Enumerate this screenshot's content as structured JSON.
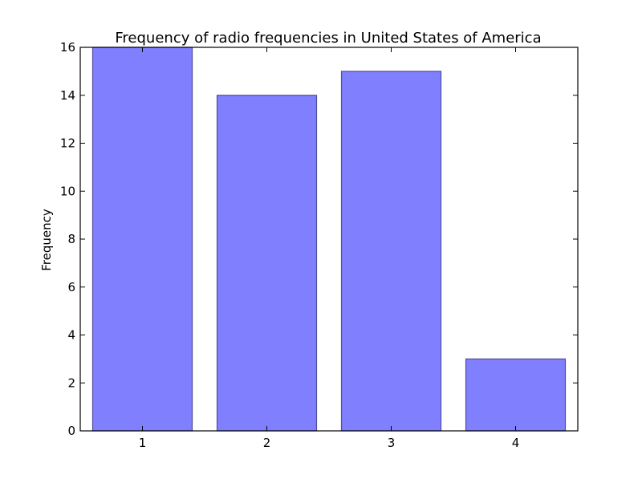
{
  "chart_data": {
    "type": "bar",
    "title": "Frequency of radio frequencies in United States of America",
    "xlabel": "",
    "ylabel": "Frequency",
    "categories": [
      "1",
      "2",
      "3",
      "4"
    ],
    "values": [
      16,
      14,
      15,
      3
    ],
    "ylim": [
      0,
      16
    ],
    "yticks": [
      0,
      2,
      4,
      6,
      8,
      10,
      12,
      14,
      16
    ],
    "grid": false,
    "bar_color": "#8080ff",
    "bar_edge_color": "#4d4da0"
  }
}
